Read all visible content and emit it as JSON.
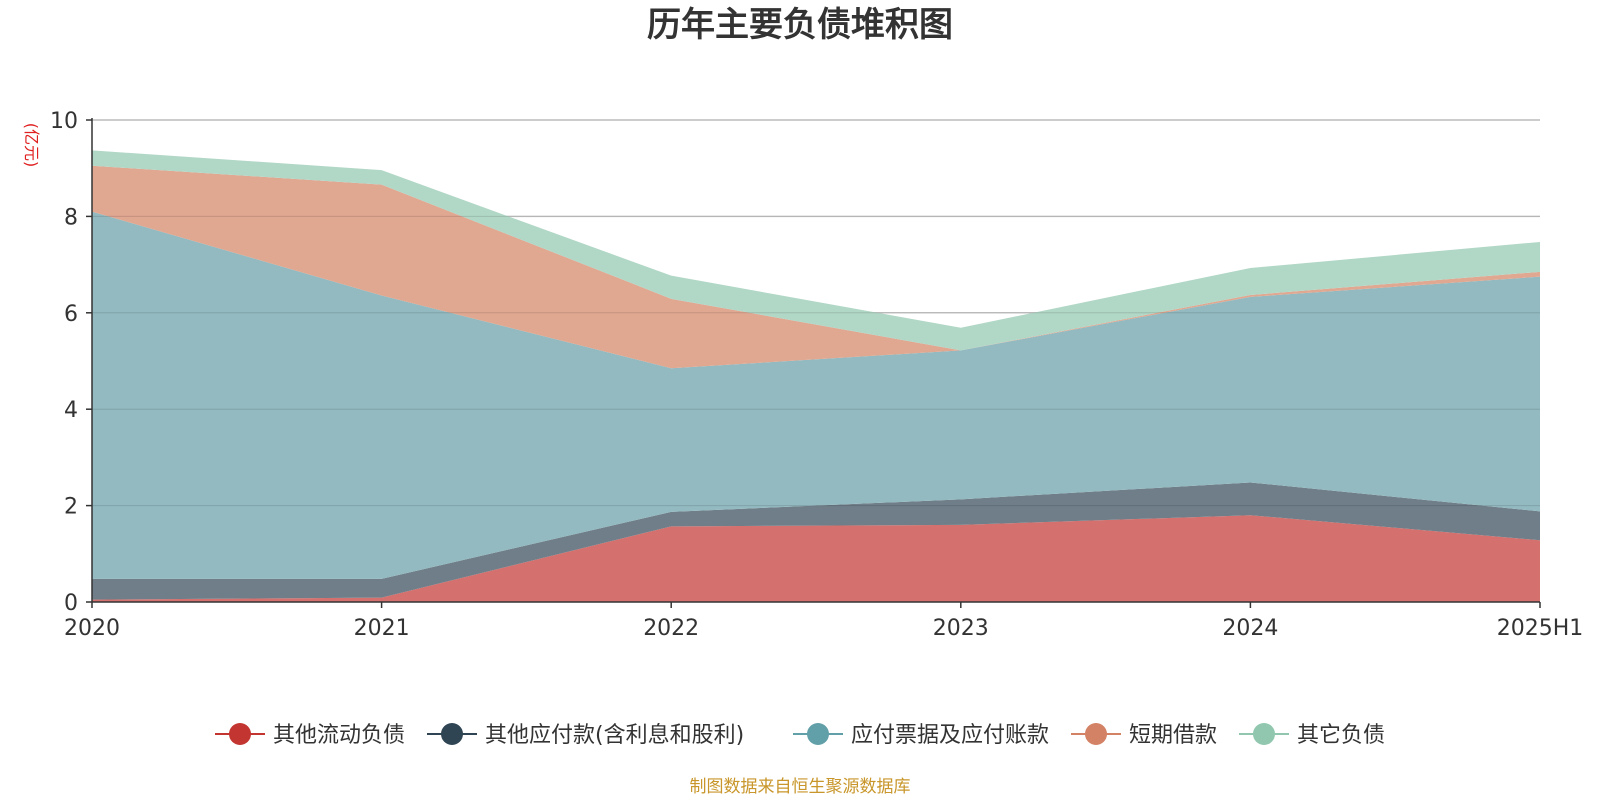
{
  "chart_data": {
    "type": "area",
    "stacked": true,
    "title": "历年主要负债堆积图",
    "ylabel": "(亿元)",
    "xlabel": "",
    "categories": [
      "2020",
      "2021",
      "2022",
      "2023",
      "2024",
      "2025H1"
    ],
    "ylim": [
      0,
      10
    ],
    "yticks": [
      0,
      2,
      4,
      6,
      8,
      10
    ],
    "grid": true,
    "legend_position": "bottom",
    "series": [
      {
        "name": "其他流动负债",
        "color": "#c23531",
        "fill": "#d4706e",
        "values": [
          0.05,
          0.09,
          1.57,
          1.6,
          1.8,
          1.28
        ]
      },
      {
        "name": "其他应付款(含利息和股利)",
        "color": "#2f4554",
        "fill": "#6f7e88",
        "values": [
          0.43,
          0.39,
          0.3,
          0.53,
          0.68,
          0.6
        ]
      },
      {
        "name": "应付票据及应付账款",
        "color": "#61a0a8",
        "fill": "#92bac0",
        "values": [
          7.62,
          5.88,
          2.98,
          3.09,
          3.85,
          4.87
        ]
      },
      {
        "name": "短期借款",
        "color": "#d48265",
        "fill": "#e0a791",
        "values": [
          0.95,
          2.3,
          1.44,
          0.0,
          0.04,
          0.1
        ]
      },
      {
        "name": "其它负债",
        "color": "#91c7ae",
        "fill": "#b1d7c6",
        "values": [
          0.32,
          0.3,
          0.48,
          0.47,
          0.56,
          0.62
        ]
      }
    ],
    "source_note": "制图数据来自恒生聚源数据库"
  }
}
